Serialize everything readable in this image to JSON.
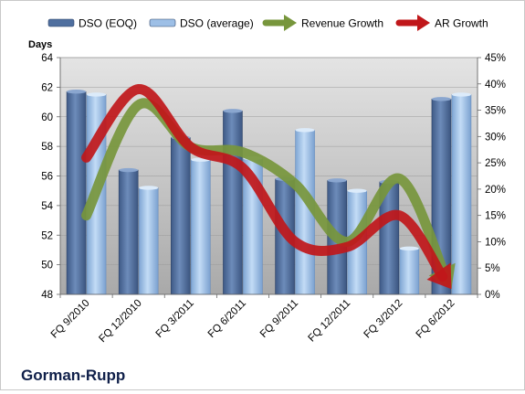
{
  "chart_data": {
    "type": "bar",
    "title": "Gorman-Rupp",
    "ylabel_left": "Days",
    "ylabel_right": "",
    "categories": [
      "FQ 9/2010",
      "FQ 12/2010",
      "FQ 3/2011",
      "FQ 6/2011",
      "FQ 9/2011",
      "FQ 12/2011",
      "FQ 3/2012",
      "FQ 6/2012"
    ],
    "left_axis": {
      "min": 48,
      "max": 64,
      "step": 2,
      "ticks": [
        "48",
        "50",
        "52",
        "54",
        "56",
        "58",
        "60",
        "62",
        "64"
      ]
    },
    "right_axis": {
      "min": 0,
      "max": 45,
      "step": 5,
      "ticks": [
        "0%",
        "5%",
        "10%",
        "15%",
        "20%",
        "25%",
        "30%",
        "35%",
        "40%",
        "45%"
      ]
    },
    "series": [
      {
        "name": "DSO (EOQ)",
        "kind": "bar",
        "axis": "left",
        "color": "#4f6f9f",
        "values": [
          61.7,
          56.4,
          58.6,
          60.4,
          55.8,
          55.7,
          55.6,
          61.2
        ]
      },
      {
        "name": "DSO (average)",
        "kind": "bar",
        "axis": "left",
        "color": "#9dbfe6",
        "values": [
          61.5,
          55.2,
          57.1,
          57.2,
          59.1,
          55.0,
          51.1,
          61.5
        ]
      },
      {
        "name": "Revenue Growth",
        "kind": "line",
        "axis": "right",
        "color": "#77963c",
        "values": [
          15,
          36,
          28,
          27,
          21,
          10,
          22,
          1
        ]
      },
      {
        "name": "AR Growth",
        "kind": "line",
        "axis": "right",
        "color": "#c0171a",
        "values": [
          26,
          39,
          28,
          24,
          10,
          9,
          15,
          1
        ]
      }
    ],
    "legend_position": "top",
    "grid": true
  }
}
